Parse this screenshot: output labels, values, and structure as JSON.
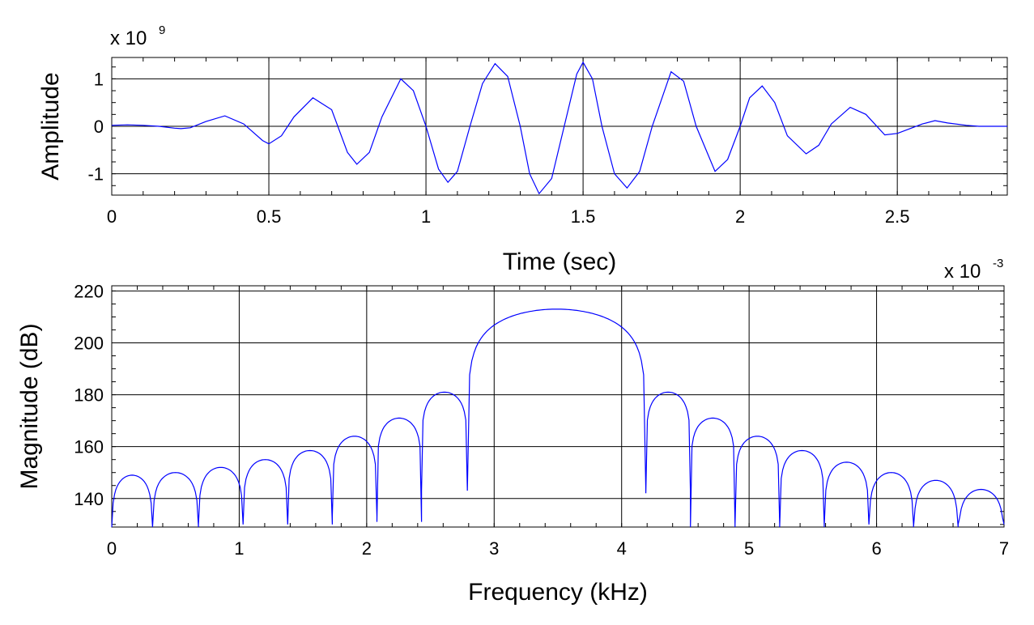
{
  "chart_data": [
    {
      "type": "line",
      "title": "",
      "xlabel": "Time (sec)",
      "ylabel": "Amplitude",
      "y_multiplier": {
        "base": "x 10",
        "exponent": "9"
      },
      "xlim": [
        0,
        2.85
      ],
      "ylim": [
        -1.45,
        1.45
      ],
      "x_ticks": [
        0,
        0.5,
        1,
        1.5,
        2,
        2.5
      ],
      "x_tick_labels": [
        "0",
        "0.5",
        "1",
        "1.5",
        "2",
        "2.5"
      ],
      "y_ticks": [
        -1,
        0,
        1
      ],
      "y_tick_labels": [
        "-1",
        "0",
        "1"
      ],
      "grid": true,
      "color": "#0000ff",
      "series": [
        {
          "x": [
            0.0,
            0.05,
            0.1,
            0.15,
            0.2,
            0.22,
            0.25,
            0.3,
            0.36,
            0.42,
            0.48,
            0.5,
            0.54,
            0.58,
            0.64,
            0.7,
            0.75,
            0.78,
            0.82,
            0.86,
            0.92,
            0.96,
            1.0,
            1.04,
            1.07,
            1.1,
            1.14,
            1.18,
            1.22,
            1.26,
            1.3,
            1.33,
            1.36,
            1.4,
            1.44,
            1.48,
            1.5,
            1.53,
            1.56,
            1.6,
            1.64,
            1.68,
            1.72,
            1.78,
            1.82,
            1.86,
            1.92,
            1.96,
            2.0,
            2.03,
            2.07,
            2.11,
            2.15,
            2.21,
            2.25,
            2.29,
            2.35,
            2.4,
            2.46,
            2.5,
            2.54,
            2.58,
            2.62,
            2.66,
            2.72,
            2.76,
            2.85
          ],
          "y": [
            0.02,
            0.03,
            0.02,
            0.0,
            -0.04,
            -0.05,
            -0.03,
            0.1,
            0.22,
            0.05,
            -0.3,
            -0.37,
            -0.2,
            0.2,
            0.6,
            0.35,
            -0.55,
            -0.8,
            -0.55,
            0.2,
            1.0,
            0.75,
            0.0,
            -0.9,
            -1.18,
            -0.95,
            0.0,
            0.9,
            1.32,
            1.05,
            0.0,
            -1.0,
            -1.42,
            -1.1,
            0.0,
            1.1,
            1.35,
            1.0,
            0.0,
            -1.0,
            -1.3,
            -0.95,
            0.0,
            1.15,
            0.95,
            0.0,
            -0.95,
            -0.7,
            0.0,
            0.6,
            0.85,
            0.5,
            -0.2,
            -0.58,
            -0.4,
            0.05,
            0.4,
            0.25,
            -0.18,
            -0.15,
            -0.05,
            0.05,
            0.12,
            0.07,
            0.02,
            0.0,
            0.0
          ]
        }
      ]
    },
    {
      "type": "line",
      "title": "",
      "xlabel": "Frequency (kHz)",
      "ylabel": "Magnitude (dB)",
      "x_multiplier": {
        "base": "x 10",
        "exponent": "-3"
      },
      "xlim": [
        0,
        7
      ],
      "ylim": [
        129,
        222
      ],
      "x_ticks": [
        0,
        1,
        2,
        3,
        4,
        5,
        6,
        7
      ],
      "x_tick_labels": [
        "0",
        "1",
        "2",
        "3",
        "4",
        "5",
        "6",
        "7"
      ],
      "y_ticks": [
        140,
        160,
        180,
        200,
        220
      ],
      "y_tick_labels": [
        "140",
        "160",
        "180",
        "200",
        "220"
      ],
      "grid": true,
      "color": "#0000ff",
      "main_lobe": {
        "from": 2.79,
        "to": 4.19,
        "peak_x": 3.49,
        "peak_db": 213
      },
      "side_lobes": [
        {
          "from": 0.0,
          "to": 0.32,
          "peak_db": 149,
          "null_db": 129
        },
        {
          "from": 0.32,
          "to": 0.68,
          "peak_db": 150,
          "null_db": 129
        },
        {
          "from": 0.68,
          "to": 1.03,
          "peak_db": 152,
          "null_db": 130
        },
        {
          "from": 1.03,
          "to": 1.38,
          "peak_db": 155,
          "null_db": 130
        },
        {
          "from": 1.38,
          "to": 1.73,
          "peak_db": 158.5,
          "null_db": 130
        },
        {
          "from": 1.73,
          "to": 2.08,
          "peak_db": 164,
          "null_db": 133
        },
        {
          "from": 2.08,
          "to": 2.43,
          "peak_db": 171,
          "null_db": 131
        },
        {
          "from": 2.43,
          "to": 2.79,
          "peak_db": 181,
          "null_db": 143
        },
        {
          "from": 4.19,
          "to": 4.54,
          "peak_db": 181,
          "null_db": 142
        },
        {
          "from": 4.54,
          "to": 4.89,
          "peak_db": 171,
          "null_db": 129
        },
        {
          "from": 4.89,
          "to": 5.24,
          "peak_db": 164,
          "null_db": 130
        },
        {
          "from": 5.24,
          "to": 5.59,
          "peak_db": 158.5,
          "null_db": 129
        },
        {
          "from": 5.59,
          "to": 5.94,
          "peak_db": 154,
          "null_db": 130
        },
        {
          "from": 5.94,
          "to": 6.29,
          "peak_db": 150,
          "null_db": 130
        },
        {
          "from": 6.29,
          "to": 6.64,
          "peak_db": 147,
          "null_db": 129
        },
        {
          "from": 6.64,
          "to": 7.0,
          "peak_db": 143.5,
          "null_db": 130
        }
      ]
    }
  ]
}
